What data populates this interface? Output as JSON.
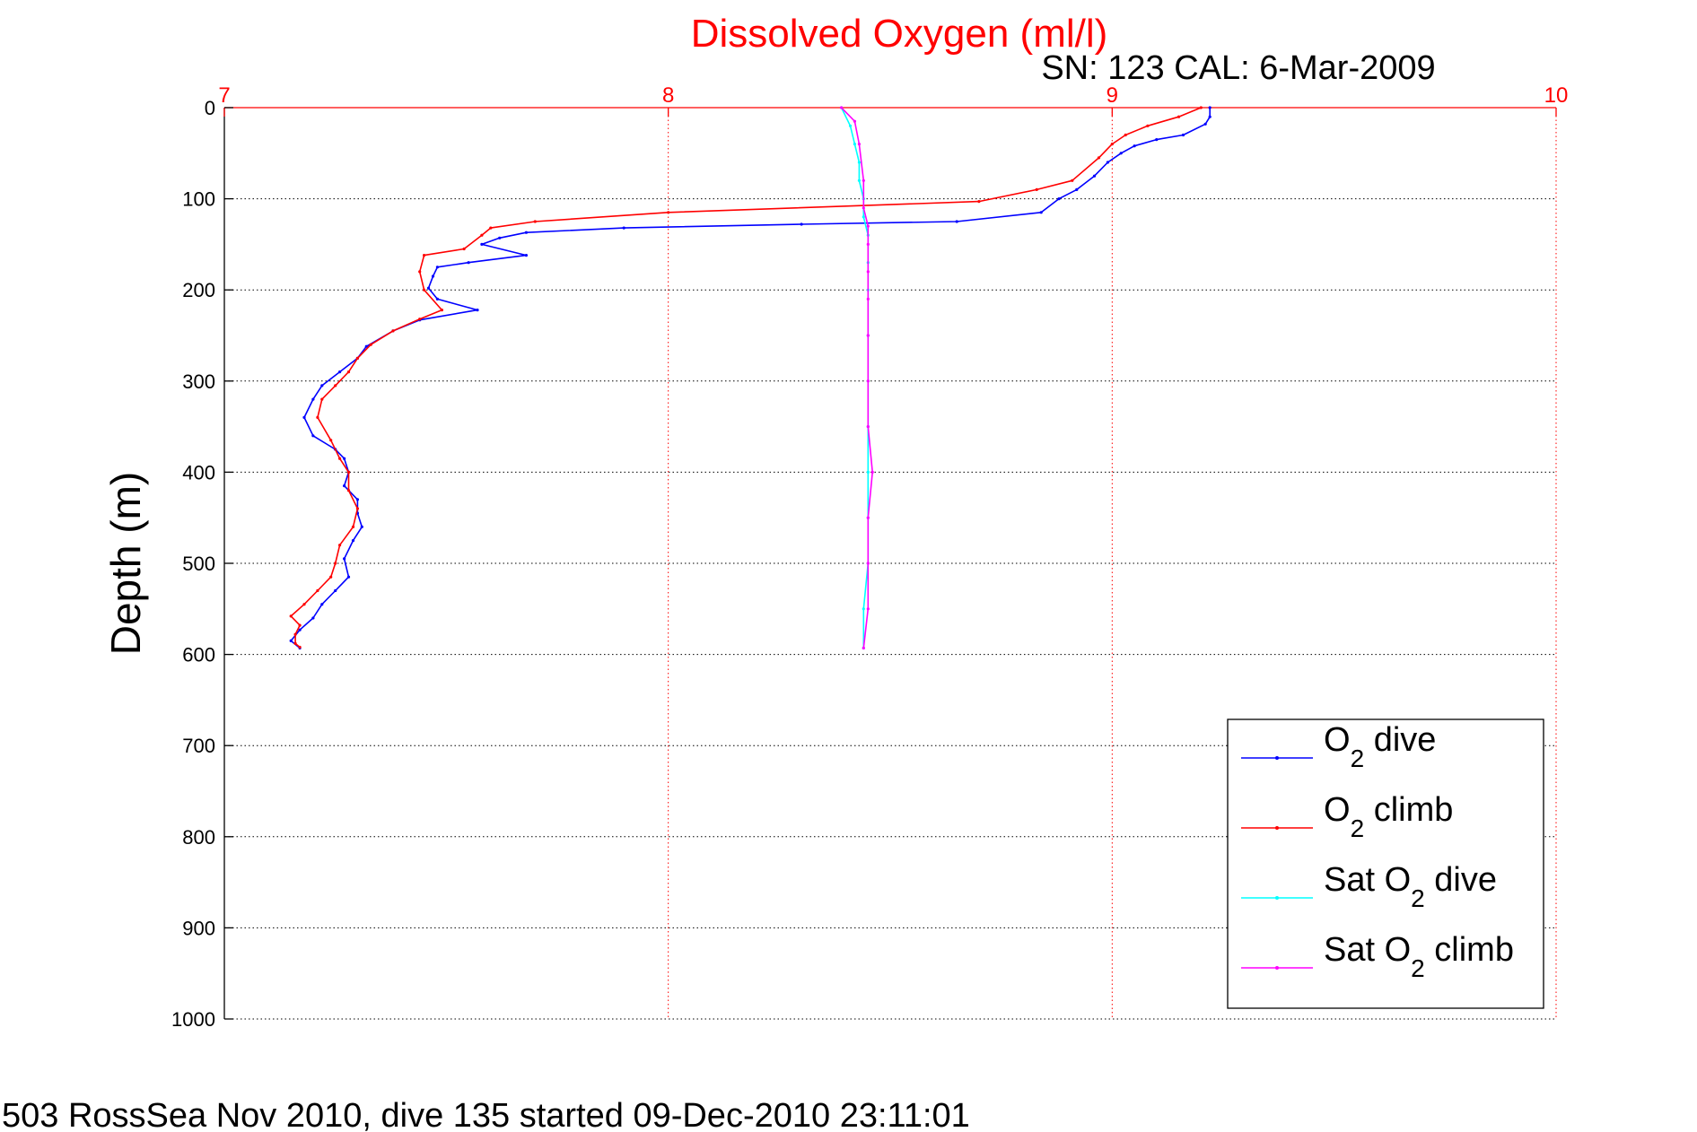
{
  "chart_data": {
    "type": "line",
    "title": "Dissolved Oxygen (ml/l)",
    "subtitle": "SN: 123  CAL: 6-Mar-2009",
    "footer": "503 RossSea Nov 2010, dive 135 started 09-Dec-2010 23:11:01",
    "xlabel": "",
    "ylabel": "Depth (m)",
    "xlim": [
      7,
      10
    ],
    "ylim": [
      0,
      1000
    ],
    "y_reversed": true,
    "x_axis_position": "top",
    "x_ticks": [
      "7",
      "8",
      "9",
      "10"
    ],
    "y_ticks": [
      "0",
      "100",
      "200",
      "300",
      "400",
      "500",
      "600",
      "700",
      "800",
      "900",
      "1000"
    ],
    "grid": true,
    "legend_position": "bottom-right",
    "colors": {
      "title": "#ff0000",
      "x_axis": "#ff0000",
      "y_axis": "#000000",
      "grid_x": "#ff0000",
      "grid_y": "#000000"
    },
    "series": [
      {
        "name": "O2 dive",
        "legend": {
          "main": "O",
          "sub": "2",
          "rest": " dive"
        },
        "color": "#0000ff",
        "points": [
          [
            9.22,
            0
          ],
          [
            9.22,
            10
          ],
          [
            9.21,
            18
          ],
          [
            9.16,
            30
          ],
          [
            9.1,
            35
          ],
          [
            9.05,
            42
          ],
          [
            9.02,
            50
          ],
          [
            8.99,
            60
          ],
          [
            8.96,
            75
          ],
          [
            8.92,
            90
          ],
          [
            8.88,
            100
          ],
          [
            8.84,
            115
          ],
          [
            8.65,
            125
          ],
          [
            8.3,
            128
          ],
          [
            7.9,
            132
          ],
          [
            7.68,
            137
          ],
          [
            7.62,
            143
          ],
          [
            7.58,
            150
          ],
          [
            7.68,
            162
          ],
          [
            7.55,
            170
          ],
          [
            7.48,
            175
          ],
          [
            7.47,
            185
          ],
          [
            7.46,
            198
          ],
          [
            7.48,
            210
          ],
          [
            7.57,
            222
          ],
          [
            7.44,
            233
          ],
          [
            7.38,
            245
          ],
          [
            7.32,
            262
          ],
          [
            7.3,
            275
          ],
          [
            7.26,
            290
          ],
          [
            7.22,
            305
          ],
          [
            7.2,
            320
          ],
          [
            7.18,
            340
          ],
          [
            7.2,
            360
          ],
          [
            7.25,
            375
          ],
          [
            7.27,
            385
          ],
          [
            7.28,
            400
          ],
          [
            7.27,
            415
          ],
          [
            7.3,
            430
          ],
          [
            7.3,
            445
          ],
          [
            7.31,
            460
          ],
          [
            7.29,
            475
          ],
          [
            7.27,
            495
          ],
          [
            7.28,
            515
          ],
          [
            7.25,
            530
          ],
          [
            7.22,
            545
          ],
          [
            7.2,
            560
          ],
          [
            7.17,
            573
          ],
          [
            7.15,
            585
          ],
          [
            7.17,
            593
          ]
        ]
      },
      {
        "name": "O2 climb",
        "legend": {
          "main": "O",
          "sub": "2",
          "rest": " climb"
        },
        "color": "#ff0000",
        "points": [
          [
            9.2,
            0
          ],
          [
            9.15,
            10
          ],
          [
            9.08,
            20
          ],
          [
            9.03,
            30
          ],
          [
            9.0,
            40
          ],
          [
            8.97,
            55
          ],
          [
            8.91,
            80
          ],
          [
            8.83,
            90
          ],
          [
            8.7,
            103
          ],
          [
            8.0,
            115
          ],
          [
            7.7,
            125
          ],
          [
            7.6,
            132
          ],
          [
            7.58,
            140
          ],
          [
            7.54,
            155
          ],
          [
            7.45,
            162
          ],
          [
            7.44,
            180
          ],
          [
            7.45,
            200
          ],
          [
            7.49,
            222
          ],
          [
            7.44,
            232
          ],
          [
            7.38,
            245
          ],
          [
            7.33,
            260
          ],
          [
            7.3,
            275
          ],
          [
            7.28,
            290
          ],
          [
            7.25,
            305
          ],
          [
            7.22,
            320
          ],
          [
            7.21,
            340
          ],
          [
            7.24,
            365
          ],
          [
            7.26,
            385
          ],
          [
            7.28,
            400
          ],
          [
            7.28,
            420
          ],
          [
            7.3,
            440
          ],
          [
            7.29,
            460
          ],
          [
            7.26,
            480
          ],
          [
            7.25,
            500
          ],
          [
            7.24,
            515
          ],
          [
            7.21,
            530
          ],
          [
            7.18,
            545
          ],
          [
            7.15,
            558
          ],
          [
            7.17,
            568
          ],
          [
            7.16,
            578
          ],
          [
            7.16,
            588
          ],
          [
            7.17,
            592
          ]
        ]
      },
      {
        "name": "Sat O2 dive",
        "legend": {
          "main": "Sat O",
          "sub": "2",
          "rest": " dive"
        },
        "color": "#00ffff",
        "points": [
          [
            8.39,
            0
          ],
          [
            8.41,
            20
          ],
          [
            8.42,
            40
          ],
          [
            8.43,
            60
          ],
          [
            8.43,
            80
          ],
          [
            8.44,
            100
          ],
          [
            8.44,
            120
          ],
          [
            8.45,
            140
          ],
          [
            8.45,
            170
          ],
          [
            8.45,
            200
          ],
          [
            8.45,
            250
          ],
          [
            8.45,
            300
          ],
          [
            8.45,
            350
          ],
          [
            8.45,
            400
          ],
          [
            8.45,
            450
          ],
          [
            8.45,
            500
          ],
          [
            8.44,
            550
          ],
          [
            8.44,
            593
          ]
        ]
      },
      {
        "name": "Sat O2 climb",
        "legend": {
          "main": "Sat O",
          "sub": "2",
          "rest": " climb"
        },
        "color": "#ff00ff",
        "points": [
          [
            8.39,
            0
          ],
          [
            8.42,
            15
          ],
          [
            8.43,
            40
          ],
          [
            8.44,
            80
          ],
          [
            8.44,
            110
          ],
          [
            8.45,
            130
          ],
          [
            8.45,
            150
          ],
          [
            8.45,
            180
          ],
          [
            8.45,
            210
          ],
          [
            8.45,
            250
          ],
          [
            8.45,
            300
          ],
          [
            8.45,
            350
          ],
          [
            8.46,
            400
          ],
          [
            8.45,
            450
          ],
          [
            8.45,
            500
          ],
          [
            8.45,
            550
          ],
          [
            8.44,
            593
          ]
        ]
      }
    ]
  }
}
